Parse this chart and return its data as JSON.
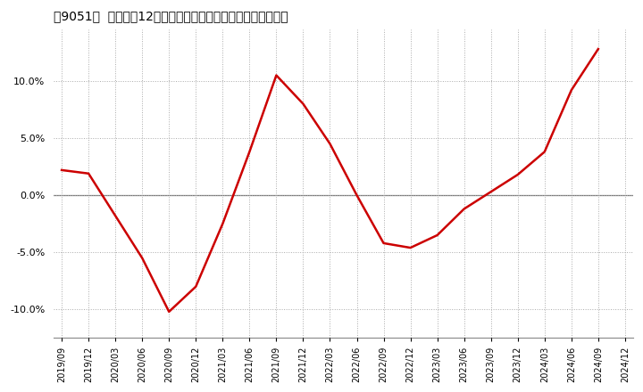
{
  "title": "［9051］  売上高の12か月移動合計の対前年同期増減率の推移",
  "line_color": "#cc0000",
  "background_color": "#ffffff",
  "plot_background_color": "#ffffff",
  "grid_color": "#aaaaaa",
  "x_labels": [
    "2019/09",
    "2019/12",
    "2020/03",
    "2020/06",
    "2020/09",
    "2020/12",
    "2021/03",
    "2021/06",
    "2021/09",
    "2021/12",
    "2022/03",
    "2022/06",
    "2022/09",
    "2022/12",
    "2023/03",
    "2023/06",
    "2023/09",
    "2023/12",
    "2024/03",
    "2024/06",
    "2024/09",
    "2024/12"
  ],
  "y_values": [
    2.2,
    1.9,
    -1.8,
    -5.5,
    -10.2,
    -8.0,
    -2.5,
    3.8,
    10.5,
    8.0,
    4.5,
    0.0,
    -4.2,
    -4.6,
    -3.5,
    -1.2,
    0.3,
    1.8,
    3.8,
    9.2,
    12.8,
    null
  ],
  "ylim": [
    -12.5,
    14.5
  ],
  "yticks": [
    -10.0,
    -5.0,
    0.0,
    5.0,
    10.0
  ],
  "ytick_labels": [
    "-10.0%",
    "-5.0%",
    "0.0%",
    "5.0%",
    "10.0%"
  ]
}
